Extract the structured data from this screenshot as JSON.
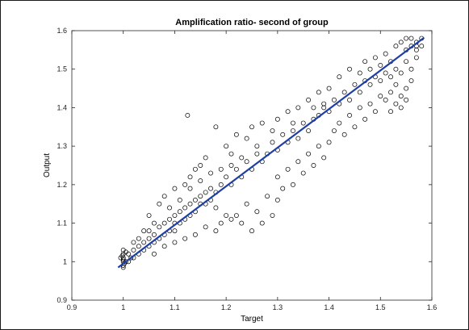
{
  "chart_data": {
    "type": "scatter",
    "title": "Amplification ratio- second of group",
    "xlabel": "Target",
    "ylabel": "Output",
    "xlim": [
      0.9,
      1.6
    ],
    "ylim": [
      0.9,
      1.6
    ],
    "x_ticks": [
      "0.9",
      "1",
      "1.1",
      "1.2",
      "1.3",
      "1.4",
      "1.5",
      "1.6"
    ],
    "y_ticks": [
      "0.9",
      "1",
      "1.1",
      "1.2",
      "1.3",
      "1.4",
      "1.5",
      "1.6"
    ],
    "grid": false,
    "legend": "none",
    "marker": "open-circle",
    "marker_color": "#000000",
    "fit_color": "#1f3fa6",
    "fit_line": {
      "x": [
        0.99,
        1.585
      ],
      "y": [
        0.985,
        1.582
      ]
    },
    "series": [
      {
        "values": [
          [
            1.0,
            1.0
          ],
          [
            1.0,
            1.01
          ],
          [
            1.0,
            0.99
          ],
          [
            1.0,
            1.02
          ],
          [
            1.0,
            1.03
          ],
          [
            1.005,
            1.0
          ],
          [
            0.995,
            1.01
          ],
          [
            1.0,
            1.005
          ],
          [
            1.002,
            0.995
          ],
          [
            0.998,
            1.015
          ],
          [
            1.01,
            1.0
          ],
          [
            1.01,
            1.02
          ],
          [
            1.0,
            0.985
          ],
          [
            1.005,
            1.025
          ],
          [
            1.015,
            1.01
          ],
          [
            1.02,
            1.01
          ],
          [
            1.02,
            1.03
          ],
          [
            1.03,
            1.02
          ],
          [
            1.03,
            1.04
          ],
          [
            1.04,
            1.03
          ],
          [
            1.04,
            1.05
          ],
          [
            1.05,
            1.04
          ],
          [
            1.05,
            1.06
          ],
          [
            1.05,
            1.08
          ],
          [
            1.06,
            1.05
          ],
          [
            1.06,
            1.07
          ],
          [
            1.07,
            1.06
          ],
          [
            1.07,
            1.09
          ],
          [
            1.08,
            1.07
          ],
          [
            1.08,
            1.1
          ],
          [
            1.09,
            1.08
          ],
          [
            1.09,
            1.11
          ],
          [
            1.1,
            1.1
          ],
          [
            1.1,
            1.12
          ],
          [
            1.1,
            1.08
          ],
          [
            1.11,
            1.1
          ],
          [
            1.11,
            1.13
          ],
          [
            1.12,
            1.11
          ],
          [
            1.12,
            1.14
          ],
          [
            1.13,
            1.12
          ],
          [
            1.13,
            1.15
          ],
          [
            1.14,
            1.13
          ],
          [
            1.14,
            1.16
          ],
          [
            1.15,
            1.15
          ],
          [
            1.15,
            1.17
          ],
          [
            1.16,
            1.15
          ],
          [
            1.16,
            1.18
          ],
          [
            1.17,
            1.16
          ],
          [
            1.17,
            1.19
          ],
          [
            1.18,
            1.18
          ],
          [
            1.05,
            1.12
          ],
          [
            1.07,
            1.15
          ],
          [
            1.08,
            1.17
          ],
          [
            1.1,
            1.19
          ],
          [
            1.12,
            1.2
          ],
          [
            1.13,
            1.22
          ],
          [
            1.14,
            1.24
          ],
          [
            1.15,
            1.25
          ],
          [
            1.16,
            1.27
          ],
          [
            1.17,
            1.23
          ],
          [
            1.06,
            1.02
          ],
          [
            1.08,
            1.04
          ],
          [
            1.1,
            1.05
          ],
          [
            1.12,
            1.06
          ],
          [
            1.14,
            1.07
          ],
          [
            1.16,
            1.09
          ],
          [
            1.18,
            1.08
          ],
          [
            1.19,
            1.1
          ],
          [
            1.2,
            1.12
          ],
          [
            1.21,
            1.11
          ],
          [
            1.125,
            1.38
          ],
          [
            1.18,
            1.35
          ],
          [
            1.2,
            1.3
          ],
          [
            1.22,
            1.33
          ],
          [
            1.21,
            1.25
          ],
          [
            1.23,
            1.27
          ],
          [
            1.24,
            1.32
          ],
          [
            1.25,
            1.35
          ],
          [
            1.26,
            1.3
          ],
          [
            1.27,
            1.36
          ],
          [
            1.18,
            1.14
          ],
          [
            1.19,
            1.2
          ],
          [
            1.2,
            1.22
          ],
          [
            1.21,
            1.2
          ],
          [
            1.22,
            1.24
          ],
          [
            1.23,
            1.22
          ],
          [
            1.24,
            1.26
          ],
          [
            1.25,
            1.24
          ],
          [
            1.26,
            1.28
          ],
          [
            1.27,
            1.26
          ],
          [
            1.22,
            1.12
          ],
          [
            1.23,
            1.1
          ],
          [
            1.24,
            1.15
          ],
          [
            1.25,
            1.08
          ],
          [
            1.26,
            1.13
          ],
          [
            1.27,
            1.1
          ],
          [
            1.28,
            1.17
          ],
          [
            1.29,
            1.12
          ],
          [
            1.3,
            1.16
          ],
          [
            1.31,
            1.19
          ],
          [
            1.28,
            1.28
          ],
          [
            1.29,
            1.31
          ],
          [
            1.3,
            1.29
          ],
          [
            1.31,
            1.33
          ],
          [
            1.32,
            1.31
          ],
          [
            1.33,
            1.34
          ],
          [
            1.34,
            1.32
          ],
          [
            1.35,
            1.36
          ],
          [
            1.36,
            1.34
          ],
          [
            1.37,
            1.37
          ],
          [
            1.29,
            1.34
          ],
          [
            1.3,
            1.37
          ],
          [
            1.32,
            1.39
          ],
          [
            1.33,
            1.36
          ],
          [
            1.34,
            1.4
          ],
          [
            1.36,
            1.42
          ],
          [
            1.37,
            1.4
          ],
          [
            1.38,
            1.44
          ],
          [
            1.39,
            1.41
          ],
          [
            1.4,
            1.45
          ],
          [
            1.3,
            1.22
          ],
          [
            1.32,
            1.24
          ],
          [
            1.33,
            1.2
          ],
          [
            1.34,
            1.26
          ],
          [
            1.35,
            1.23
          ],
          [
            1.36,
            1.28
          ],
          [
            1.37,
            1.25
          ],
          [
            1.38,
            1.3
          ],
          [
            1.39,
            1.27
          ],
          [
            1.4,
            1.31
          ],
          [
            1.38,
            1.38
          ],
          [
            1.39,
            1.4
          ],
          [
            1.4,
            1.39
          ],
          [
            1.41,
            1.42
          ],
          [
            1.42,
            1.41
          ],
          [
            1.43,
            1.44
          ],
          [
            1.44,
            1.42
          ],
          [
            1.45,
            1.46
          ],
          [
            1.46,
            1.44
          ],
          [
            1.47,
            1.47
          ],
          [
            1.41,
            1.34
          ],
          [
            1.42,
            1.36
          ],
          [
            1.43,
            1.33
          ],
          [
            1.44,
            1.38
          ],
          [
            1.45,
            1.35
          ],
          [
            1.46,
            1.4
          ],
          [
            1.47,
            1.37
          ],
          [
            1.48,
            1.41
          ],
          [
            1.49,
            1.39
          ],
          [
            1.5,
            1.43
          ],
          [
            1.42,
            1.48
          ],
          [
            1.44,
            1.5
          ],
          [
            1.46,
            1.49
          ],
          [
            1.47,
            1.52
          ],
          [
            1.48,
            1.5
          ],
          [
            1.49,
            1.53
          ],
          [
            1.5,
            1.51
          ],
          [
            1.51,
            1.54
          ],
          [
            1.52,
            1.52
          ],
          [
            1.53,
            1.56
          ],
          [
            1.48,
            1.46
          ],
          [
            1.49,
            1.48
          ],
          [
            1.5,
            1.47
          ],
          [
            1.51,
            1.49
          ],
          [
            1.52,
            1.48
          ],
          [
            1.53,
            1.5
          ],
          [
            1.54,
            1.49
          ],
          [
            1.55,
            1.52
          ],
          [
            1.56,
            1.5
          ],
          [
            1.57,
            1.53
          ],
          [
            1.51,
            1.42
          ],
          [
            1.52,
            1.44
          ],
          [
            1.53,
            1.41
          ],
          [
            1.54,
            1.43
          ],
          [
            1.55,
            1.45
          ],
          [
            1.56,
            1.47
          ],
          [
            1.53,
            1.46
          ],
          [
            1.54,
            1.4
          ],
          [
            1.52,
            1.39
          ],
          [
            1.55,
            1.42
          ],
          [
            1.55,
            1.55
          ],
          [
            1.56,
            1.56
          ],
          [
            1.57,
            1.57
          ],
          [
            1.58,
            1.58
          ],
          [
            1.56,
            1.58
          ],
          [
            1.57,
            1.56
          ],
          [
            1.58,
            1.56
          ],
          [
            1.54,
            1.57
          ],
          [
            1.55,
            1.58
          ],
          [
            1.57,
            1.55
          ],
          [
            1.02,
            1.05
          ],
          [
            1.03,
            1.06
          ],
          [
            1.04,
            1.08
          ],
          [
            1.06,
            1.1
          ],
          [
            1.09,
            1.14
          ],
          [
            1.11,
            1.16
          ],
          [
            1.13,
            1.19
          ],
          [
            1.15,
            1.21
          ],
          [
            1.19,
            1.24
          ],
          [
            1.21,
            1.28
          ]
        ]
      }
    ]
  }
}
